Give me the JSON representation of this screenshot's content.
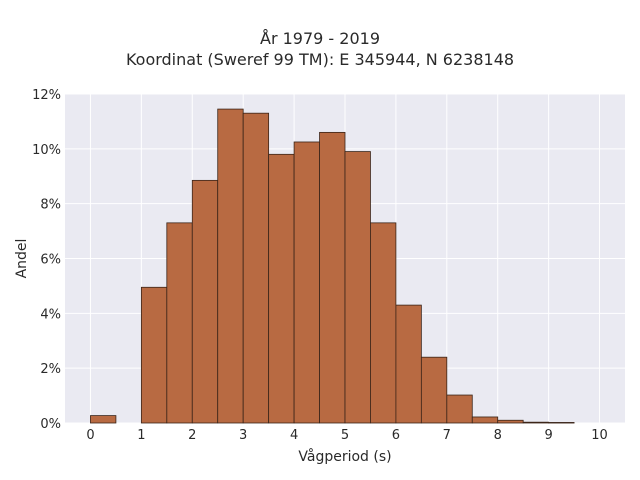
{
  "chart_data": {
    "type": "bar",
    "title": "År 1979 - 2019",
    "subtitle": "Koordinat (Sweref 99 TM): E 345944, N 6238148",
    "xlabel": "Vågperiod (s)",
    "ylabel": "Andel",
    "xlim": [
      -0.5,
      10.5
    ],
    "ylim": [
      0,
      12
    ],
    "x_ticks": [
      "0",
      "1",
      "2",
      "3",
      "4",
      "5",
      "6",
      "7",
      "8",
      "9",
      "10"
    ],
    "y_ticks": [
      "0%",
      "2%",
      "4%",
      "6%",
      "8%",
      "10%",
      "12%"
    ],
    "bin_width": 0.5,
    "bins": [
      {
        "start": 0.0,
        "value": 0.27
      },
      {
        "start": 0.5,
        "value": 0.0
      },
      {
        "start": 1.0,
        "value": 4.95
      },
      {
        "start": 1.5,
        "value": 7.3
      },
      {
        "start": 2.0,
        "value": 8.85
      },
      {
        "start": 2.5,
        "value": 11.45
      },
      {
        "start": 3.0,
        "value": 11.3
      },
      {
        "start": 3.5,
        "value": 9.8
      },
      {
        "start": 4.0,
        "value": 10.25
      },
      {
        "start": 4.5,
        "value": 10.6
      },
      {
        "start": 5.0,
        "value": 9.9
      },
      {
        "start": 5.5,
        "value": 7.3
      },
      {
        "start": 6.0,
        "value": 4.3
      },
      {
        "start": 6.5,
        "value": 2.4
      },
      {
        "start": 7.0,
        "value": 1.02
      },
      {
        "start": 7.5,
        "value": 0.22
      },
      {
        "start": 8.0,
        "value": 0.1
      },
      {
        "start": 8.5,
        "value": 0.03
      },
      {
        "start": 9.0,
        "value": 0.02
      },
      {
        "start": 9.5,
        "value": 0.0
      }
    ],
    "grid": true,
    "colors": {
      "bar_fill": "#b86a42",
      "bar_stroke": "#3a2418",
      "plot_bg": "#eaeaf2",
      "grid": "#ffffff"
    }
  }
}
